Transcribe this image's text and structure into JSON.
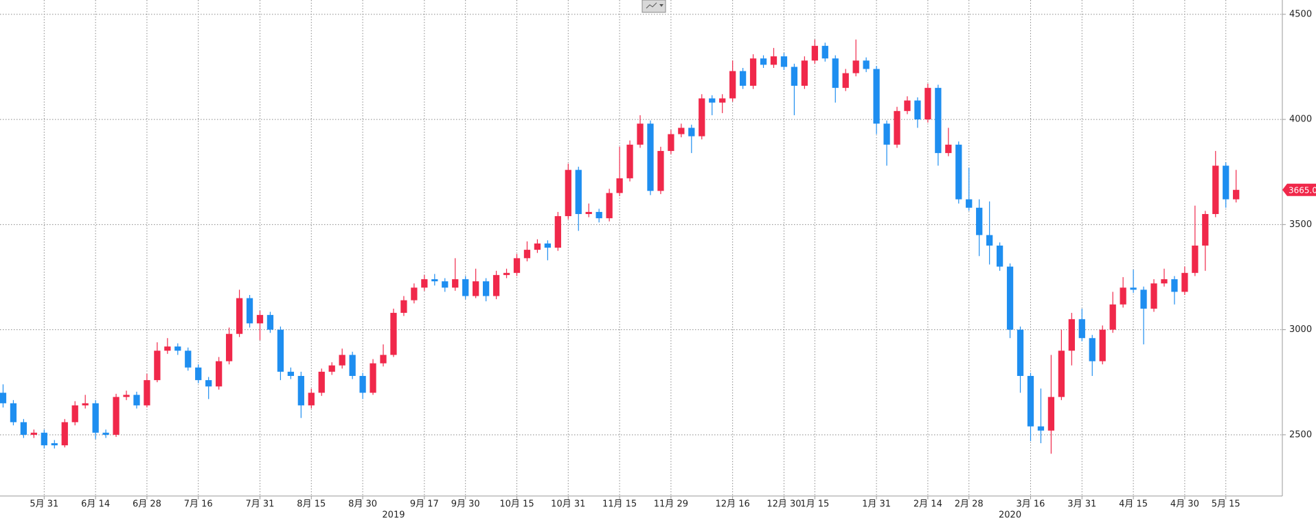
{
  "chart_data": {
    "type": "candlestick",
    "up_color": "#f0284a",
    "down_color": "#1e8ef0",
    "grid": true,
    "ylim": [
      2209,
      4568
    ],
    "yticks": [
      2500,
      3000,
      3500,
      4000,
      4500
    ],
    "xlim": [
      -0.3,
      124.5
    ],
    "xticks": [
      {
        "value": 4,
        "label": "5月 31"
      },
      {
        "value": 9,
        "label": "6月 14"
      },
      {
        "value": 14,
        "label": "6月 28"
      },
      {
        "value": 19,
        "label": "7月 16"
      },
      {
        "value": 25,
        "label": "7月 31"
      },
      {
        "value": 30,
        "label": "8月 15"
      },
      {
        "value": 35,
        "label": "8月 30"
      },
      {
        "value": 41,
        "label": "9月 17"
      },
      {
        "value": 45,
        "label": "9月 30"
      },
      {
        "value": 50,
        "label": "10月 15"
      },
      {
        "value": 55,
        "label": "10月 31"
      },
      {
        "value": 60,
        "label": "11月 15"
      },
      {
        "value": 65,
        "label": "11月 29"
      },
      {
        "value": 71,
        "label": "12月 16"
      },
      {
        "value": 76,
        "label": "12月 30"
      },
      {
        "value": 79,
        "label": "1月 15"
      },
      {
        "value": 85,
        "label": "1月 31"
      },
      {
        "value": 90,
        "label": "2月 14"
      },
      {
        "value": 94,
        "label": "2月 28"
      },
      {
        "value": 100,
        "label": "3月 16"
      },
      {
        "value": 105,
        "label": "3月 31"
      },
      {
        "value": 110,
        "label": "4月 15"
      },
      {
        "value": 115,
        "label": "4月 30"
      },
      {
        "value": 119,
        "label": "5月 15"
      }
    ],
    "year_labels": [
      {
        "value": 38,
        "label": "2019"
      },
      {
        "value": 98,
        "label": "2020"
      }
    ],
    "last_price": {
      "value": 3665,
      "label": "3665.0"
    },
    "ohlc": [
      [
        2700,
        2740,
        2630,
        2650
      ],
      [
        2650,
        2665,
        2545,
        2560
      ],
      [
        2560,
        2575,
        2485,
        2500
      ],
      [
        2500,
        2525,
        2485,
        2510
      ],
      [
        2510,
        2525,
        2435,
        2450
      ],
      [
        2460,
        2475,
        2435,
        2450
      ],
      [
        2450,
        2575,
        2440,
        2560
      ],
      [
        2560,
        2660,
        2545,
        2640
      ],
      [
        2640,
        2690,
        2625,
        2650
      ],
      [
        2650,
        2665,
        2480,
        2510
      ],
      [
        2510,
        2525,
        2485,
        2500
      ],
      [
        2500,
        2695,
        2490,
        2680
      ],
      [
        2680,
        2710,
        2665,
        2690
      ],
      [
        2690,
        2705,
        2625,
        2640
      ],
      [
        2640,
        2790,
        2630,
        2760
      ],
      [
        2760,
        2940,
        2750,
        2900
      ],
      [
        2900,
        2960,
        2885,
        2920
      ],
      [
        2920,
        2935,
        2880,
        2900
      ],
      [
        2900,
        2915,
        2805,
        2820
      ],
      [
        2820,
        2835,
        2745,
        2760
      ],
      [
        2760,
        2775,
        2670,
        2730
      ],
      [
        2730,
        2870,
        2715,
        2850
      ],
      [
        2850,
        3010,
        2835,
        2980
      ],
      [
        2980,
        3190,
        2965,
        3150
      ],
      [
        3150,
        3165,
        3010,
        3030
      ],
      [
        3030,
        3090,
        2950,
        3070
      ],
      [
        3070,
        3085,
        2985,
        3000
      ],
      [
        3000,
        3015,
        2760,
        2800
      ],
      [
        2800,
        2820,
        2765,
        2780
      ],
      [
        2780,
        2800,
        2580,
        2640
      ],
      [
        2640,
        2720,
        2625,
        2700
      ],
      [
        2700,
        2815,
        2685,
        2800
      ],
      [
        2800,
        2845,
        2785,
        2830
      ],
      [
        2830,
        2910,
        2815,
        2880
      ],
      [
        2880,
        2895,
        2765,
        2780
      ],
      [
        2780,
        2795,
        2670,
        2700
      ],
      [
        2700,
        2860,
        2690,
        2840
      ],
      [
        2840,
        2930,
        2825,
        2880
      ],
      [
        2880,
        3100,
        2870,
        3080
      ],
      [
        3080,
        3160,
        3065,
        3140
      ],
      [
        3140,
        3220,
        3125,
        3200
      ],
      [
        3200,
        3260,
        3185,
        3240
      ],
      [
        3240,
        3265,
        3210,
        3230
      ],
      [
        3230,
        3245,
        3180,
        3200
      ],
      [
        3200,
        3340,
        3185,
        3240
      ],
      [
        3240,
        3255,
        3145,
        3160
      ],
      [
        3160,
        3290,
        3150,
        3230
      ],
      [
        3230,
        3245,
        3135,
        3160
      ],
      [
        3160,
        3280,
        3145,
        3260
      ],
      [
        3260,
        3290,
        3245,
        3270
      ],
      [
        3270,
        3360,
        3255,
        3340
      ],
      [
        3340,
        3420,
        3325,
        3380
      ],
      [
        3380,
        3430,
        3365,
        3410
      ],
      [
        3410,
        3425,
        3330,
        3390
      ],
      [
        3390,
        3560,
        3375,
        3540
      ],
      [
        3540,
        3790,
        3525,
        3760
      ],
      [
        3760,
        3775,
        3470,
        3550
      ],
      [
        3550,
        3600,
        3535,
        3560
      ],
      [
        3560,
        3575,
        3510,
        3530
      ],
      [
        3530,
        3670,
        3515,
        3650
      ],
      [
        3650,
        3870,
        3635,
        3720
      ],
      [
        3720,
        3900,
        3705,
        3880
      ],
      [
        3880,
        4020,
        3865,
        3980
      ],
      [
        3980,
        3995,
        3640,
        3660
      ],
      [
        3660,
        3870,
        3645,
        3850
      ],
      [
        3850,
        3950,
        3835,
        3930
      ],
      [
        3930,
        3980,
        3915,
        3960
      ],
      [
        3960,
        3975,
        3840,
        3920
      ],
      [
        3920,
        4120,
        3905,
        4100
      ],
      [
        4100,
        4115,
        4020,
        4080
      ],
      [
        4080,
        4120,
        4030,
        4100
      ],
      [
        4100,
        4280,
        4085,
        4230
      ],
      [
        4230,
        4245,
        4145,
        4160
      ],
      [
        4160,
        4310,
        4145,
        4290
      ],
      [
        4290,
        4305,
        4245,
        4260
      ],
      [
        4260,
        4340,
        4245,
        4300
      ],
      [
        4300,
        4315,
        4235,
        4250
      ],
      [
        4250,
        4265,
        4020,
        4160
      ],
      [
        4160,
        4300,
        4145,
        4280
      ],
      [
        4280,
        4380,
        4265,
        4350
      ],
      [
        4350,
        4365,
        4275,
        4290
      ],
      [
        4290,
        4305,
        4080,
        4150
      ],
      [
        4150,
        4240,
        4135,
        4220
      ],
      [
        4220,
        4380,
        4205,
        4280
      ],
      [
        4280,
        4295,
        4225,
        4240
      ],
      [
        4240,
        4255,
        3930,
        3980
      ],
      [
        3980,
        3995,
        3780,
        3880
      ],
      [
        3880,
        4060,
        3865,
        4040
      ],
      [
        4040,
        4110,
        4025,
        4090
      ],
      [
        4090,
        4105,
        3960,
        4000
      ],
      [
        4000,
        4170,
        3985,
        4150
      ],
      [
        4150,
        4165,
        3780,
        3840
      ],
      [
        3840,
        3960,
        3825,
        3880
      ],
      [
        3880,
        3895,
        3600,
        3620
      ],
      [
        3620,
        3770,
        3565,
        3580
      ],
      [
        3580,
        3620,
        3350,
        3450
      ],
      [
        3450,
        3610,
        3310,
        3400
      ],
      [
        3400,
        3415,
        3280,
        3300
      ],
      [
        3300,
        3315,
        2960,
        3000
      ],
      [
        3000,
        3015,
        2700,
        2780
      ],
      [
        2780,
        2795,
        2470,
        2540
      ],
      [
        2540,
        2720,
        2460,
        2520
      ],
      [
        2520,
        2880,
        2410,
        2680
      ],
      [
        2680,
        3000,
        2665,
        2900
      ],
      [
        2900,
        3080,
        2830,
        3050
      ],
      [
        3050,
        3100,
        2945,
        2960
      ],
      [
        2960,
        2975,
        2780,
        2850
      ],
      [
        2850,
        3020,
        2835,
        3000
      ],
      [
        3000,
        3180,
        2985,
        3120
      ],
      [
        3120,
        3250,
        3105,
        3200
      ],
      [
        3200,
        3285,
        3175,
        3190
      ],
      [
        3190,
        3205,
        2930,
        3100
      ],
      [
        3100,
        3240,
        3085,
        3220
      ],
      [
        3220,
        3290,
        3205,
        3240
      ],
      [
        3240,
        3255,
        3120,
        3180
      ],
      [
        3180,
        3300,
        3165,
        3270
      ],
      [
        3270,
        3590,
        3255,
        3400
      ],
      [
        3400,
        3565,
        3280,
        3550
      ],
      [
        3550,
        3850,
        3535,
        3780
      ],
      [
        3780,
        3795,
        3580,
        3620
      ],
      [
        3620,
        3760,
        3605,
        3665
      ]
    ]
  }
}
